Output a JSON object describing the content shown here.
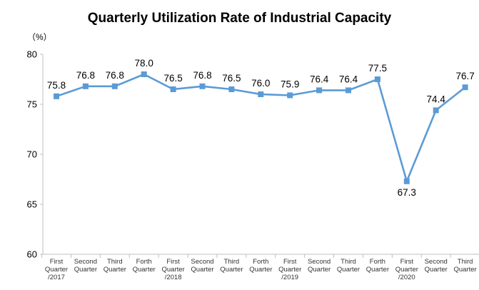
{
  "chart_data": {
    "type": "line",
    "title": "Quarterly Utilization Rate of Industrial Capacity",
    "unit_label": "（%）",
    "ylim": [
      60,
      80
    ],
    "yticks": [
      60,
      65,
      70,
      75,
      80
    ],
    "grid": false,
    "legend": "none",
    "color": "#5b9bd5",
    "categories": [
      [
        "First",
        "Quarter",
        "/2017"
      ],
      [
        "Second",
        "Quarter"
      ],
      [
        "Third",
        "Quarter"
      ],
      [
        "Forth",
        "Quarter"
      ],
      [
        "First",
        "Quarter",
        "/2018"
      ],
      [
        "Second",
        "Quarter"
      ],
      [
        "Third",
        "Quarter"
      ],
      [
        "Forth",
        "Quarter"
      ],
      [
        "First",
        "Quarter",
        "/2019"
      ],
      [
        "Second",
        "Quarter"
      ],
      [
        "Third",
        "Quarter"
      ],
      [
        "Forth",
        "Quarter"
      ],
      [
        "First",
        "Quarter",
        "/2020"
      ],
      [
        "Second",
        "Quarter"
      ],
      [
        "Third",
        "Quarter"
      ]
    ],
    "values": [
      75.8,
      76.8,
      76.8,
      78.0,
      76.5,
      76.8,
      76.5,
      76.0,
      75.9,
      76.4,
      76.4,
      77.5,
      67.3,
      74.4,
      76.7
    ],
    "labels": [
      "75.8",
      "76.8",
      "76.8",
      "78.0",
      "76.5",
      "76.8",
      "76.5",
      "76.0",
      "75.9",
      "76.4",
      "76.4",
      "77.5",
      "67.3",
      "74.4",
      "76.7"
    ]
  }
}
